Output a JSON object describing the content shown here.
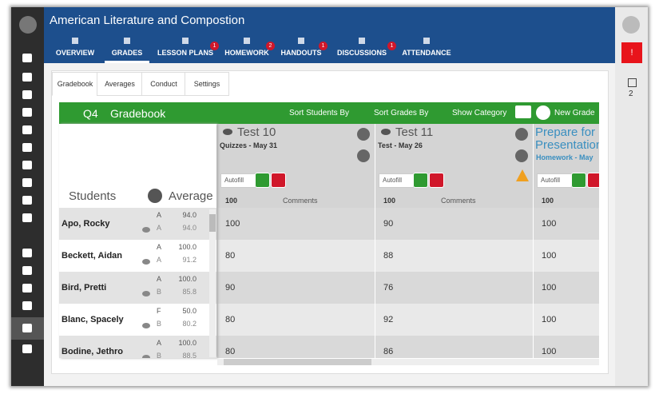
{
  "header": {
    "title": "American Literature and Compostion"
  },
  "tabs": [
    {
      "label": "OVERVIEW"
    },
    {
      "label": "GRADES",
      "active": true
    },
    {
      "label": "LESSON PLANS",
      "badge": "1"
    },
    {
      "label": "HOMEWORK",
      "badge": "2"
    },
    {
      "label": "HANDOUTS",
      "badge": "1"
    },
    {
      "label": "DISCUSSIONS",
      "badge": "1"
    },
    {
      "label": "ATTENDANCE"
    }
  ],
  "subtabs": [
    "Gradebook",
    "Averages",
    "Conduct",
    "Settings"
  ],
  "toolbar": {
    "quarter": "Q4",
    "title": "Gradebook",
    "sort_students": "Sort Students By",
    "sort_grades": "Sort Grades By",
    "show_category": "Show Category",
    "new_grade": "New Grade"
  },
  "students_header": "Students",
  "average_header": "Average",
  "autofill": "Autofill",
  "comments": "Comments",
  "assignments": [
    {
      "title": "Test 10",
      "subtitle": "Quizzes - May 31",
      "max": "100"
    },
    {
      "title": "Test 11",
      "subtitle": "Test - May 26",
      "max": "100"
    },
    {
      "title": "Prepare for Presentation",
      "subtitle": "Homework - May",
      "max": "100"
    }
  ],
  "students": [
    {
      "name": "Apo, Rocky",
      "letters": [
        "A",
        "A"
      ],
      "averages": [
        "94.0",
        "94.0"
      ],
      "scores": [
        "100",
        "90",
        "100"
      ]
    },
    {
      "name": "Beckett, Aidan",
      "letters": [
        "A",
        "A"
      ],
      "averages": [
        "100.0",
        "91.2"
      ],
      "scores": [
        "80",
        "88",
        "100"
      ]
    },
    {
      "name": "Bird, Pretti",
      "letters": [
        "A",
        "B"
      ],
      "averages": [
        "100.0",
        "85.8"
      ],
      "scores": [
        "90",
        "76",
        "100"
      ]
    },
    {
      "name": "Blanc, Spacely",
      "letters": [
        "F",
        "B"
      ],
      "averages": [
        "50.0",
        "80.2"
      ],
      "scores": [
        "80",
        "92",
        "100"
      ]
    },
    {
      "name": "Bodine, Jethro",
      "letters": [
        "A",
        "B"
      ],
      "averages": [
        "100.0",
        "88.5"
      ],
      "scores": [
        "80",
        "86",
        "100"
      ]
    }
  ],
  "right_panel": {
    "alert": "!",
    "calendar_count": "2"
  }
}
